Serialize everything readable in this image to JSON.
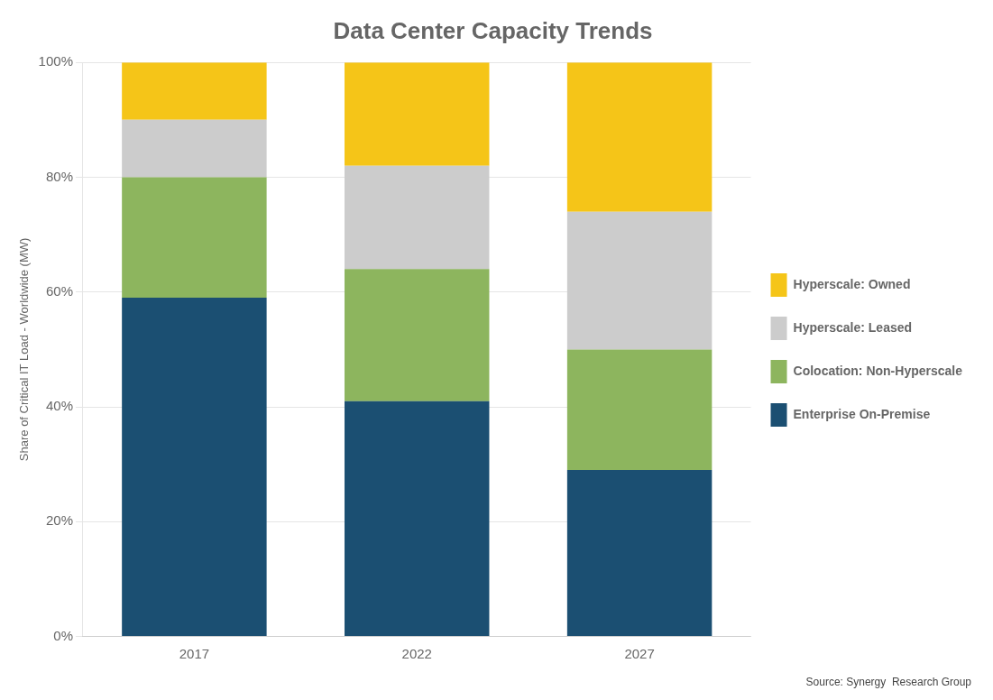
{
  "chart_data": {
    "type": "bar",
    "stacked": true,
    "title": "Data Center Capacity Trends",
    "ylabel": "Share of Critical IT Load - Worldwide (MW)",
    "annotations": [
      "Source: Synergy  Research Group"
    ],
    "categories": [
      "2017",
      "2022",
      "2027"
    ],
    "series": [
      {
        "name": "Enterprise On-Premise",
        "color": "#1b4f72",
        "values": [
          59,
          41,
          29
        ]
      },
      {
        "name": "Colocation: Non-Hyperscale",
        "color": "#8db55e",
        "values": [
          21,
          23,
          21
        ]
      },
      {
        "name": "Hyperscale: Leased",
        "color": "#cccccc",
        "values": [
          10,
          18,
          24
        ]
      },
      {
        "name": "Hyperscale: Owned",
        "color": "#f5c518",
        "values": [
          10,
          18,
          26
        ]
      }
    ],
    "ylim": [
      0,
      100
    ],
    "yticks": [
      {
        "value": 0,
        "label": "0%"
      },
      {
        "value": 20,
        "label": "20%"
      },
      {
        "value": 40,
        "label": "40%"
      },
      {
        "value": 60,
        "label": "60%"
      },
      {
        "value": 80,
        "label": "80%"
      },
      {
        "value": 100,
        "label": "100%"
      }
    ],
    "grid": true,
    "legend": "right"
  }
}
